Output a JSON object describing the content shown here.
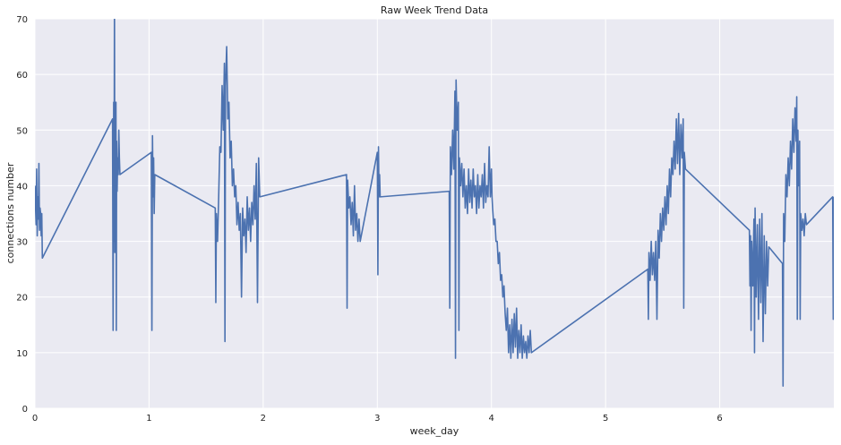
{
  "chart_data": {
    "type": "line",
    "title": "Raw Week Trend Data",
    "xlabel": "week_day",
    "ylabel": "connections number",
    "xlim": [
      0,
      7.0
    ],
    "ylim": [
      0,
      70
    ],
    "x_ticks": [
      "0",
      "1",
      "2",
      "3",
      "4",
      "5",
      "6"
    ],
    "y_ticks": [
      "0",
      "10",
      "20",
      "30",
      "40",
      "50",
      "60",
      "70"
    ],
    "grid": true,
    "legend": "none",
    "colors": {
      "background": "#eaeaf2",
      "grid": "#ffffff",
      "series": "#4c72b0"
    },
    "series": [
      {
        "values": [
          [
            0.0,
            40
          ],
          [
            0.01,
            33
          ],
          [
            0.015,
            43
          ],
          [
            0.02,
            31
          ],
          [
            0.025,
            38
          ],
          [
            0.03,
            34
          ],
          [
            0.035,
            44
          ],
          [
            0.04,
            32
          ],
          [
            0.045,
            36
          ],
          [
            0.05,
            35
          ],
          [
            0.055,
            31
          ],
          [
            0.06,
            35
          ],
          [
            0.065,
            27
          ],
          [
            0.68,
            52
          ],
          [
            0.685,
            14
          ],
          [
            0.69,
            55
          ],
          [
            0.693,
            30
          ],
          [
            0.697,
            75
          ],
          [
            0.7,
            28
          ],
          [
            0.703,
            50
          ],
          [
            0.706,
            36
          ],
          [
            0.71,
            55
          ],
          [
            0.713,
            14
          ],
          [
            0.716,
            48
          ],
          [
            0.72,
            39
          ],
          [
            0.725,
            45
          ],
          [
            0.73,
            42
          ],
          [
            0.735,
            50
          ],
          [
            0.74,
            45
          ],
          [
            0.745,
            42
          ],
          [
            1.02,
            46
          ],
          [
            1.025,
            14
          ],
          [
            1.03,
            49
          ],
          [
            1.035,
            38
          ],
          [
            1.04,
            45
          ],
          [
            1.045,
            35
          ],
          [
            1.05,
            42
          ],
          [
            1.58,
            36
          ],
          [
            1.585,
            19
          ],
          [
            1.59,
            35
          ],
          [
            1.6,
            30
          ],
          [
            1.61,
            38
          ],
          [
            1.62,
            47
          ],
          [
            1.63,
            46
          ],
          [
            1.64,
            58
          ],
          [
            1.65,
            50
          ],
          [
            1.66,
            62
          ],
          [
            1.665,
            12
          ],
          [
            1.67,
            58
          ],
          [
            1.68,
            65
          ],
          [
            1.69,
            52
          ],
          [
            1.7,
            55
          ],
          [
            1.71,
            45
          ],
          [
            1.72,
            48
          ],
          [
            1.73,
            40
          ],
          [
            1.74,
            43
          ],
          [
            1.75,
            38
          ],
          [
            1.76,
            40
          ],
          [
            1.77,
            33
          ],
          [
            1.78,
            37
          ],
          [
            1.79,
            32
          ],
          [
            1.8,
            35
          ],
          [
            1.81,
            20
          ],
          [
            1.82,
            36
          ],
          [
            1.83,
            31
          ],
          [
            1.84,
            34
          ],
          [
            1.85,
            28
          ],
          [
            1.86,
            38
          ],
          [
            1.87,
            32
          ],
          [
            1.88,
            36
          ],
          [
            1.89,
            30
          ],
          [
            1.9,
            37
          ],
          [
            1.91,
            33
          ],
          [
            1.92,
            40
          ],
          [
            1.93,
            34
          ],
          [
            1.94,
            44
          ],
          [
            1.95,
            19
          ],
          [
            1.96,
            45
          ],
          [
            1.97,
            38
          ],
          [
            2.73,
            42
          ],
          [
            2.735,
            18
          ],
          [
            2.74,
            41
          ],
          [
            2.75,
            36
          ],
          [
            2.76,
            38
          ],
          [
            2.77,
            33
          ],
          [
            2.78,
            37
          ],
          [
            2.79,
            31
          ],
          [
            2.8,
            40
          ],
          [
            2.81,
            32
          ],
          [
            2.82,
            35
          ],
          [
            2.83,
            30
          ],
          [
            2.84,
            34
          ],
          [
            2.85,
            30
          ],
          [
            3.0,
            46
          ],
          [
            3.005,
            24
          ],
          [
            3.01,
            47
          ],
          [
            3.015,
            38
          ],
          [
            3.02,
            42
          ],
          [
            3.025,
            38
          ],
          [
            3.63,
            39
          ],
          [
            3.635,
            18
          ],
          [
            3.64,
            47
          ],
          [
            3.65,
            42
          ],
          [
            3.66,
            50
          ],
          [
            3.67,
            43
          ],
          [
            3.68,
            57
          ],
          [
            3.685,
            9
          ],
          [
            3.69,
            59
          ],
          [
            3.7,
            50
          ],
          [
            3.71,
            55
          ],
          [
            3.715,
            14
          ],
          [
            3.72,
            45
          ],
          [
            3.73,
            40
          ],
          [
            3.74,
            44
          ],
          [
            3.75,
            38
          ],
          [
            3.76,
            43
          ],
          [
            3.77,
            36
          ],
          [
            3.78,
            40
          ],
          [
            3.79,
            35
          ],
          [
            3.8,
            43
          ],
          [
            3.81,
            37
          ],
          [
            3.82,
            41
          ],
          [
            3.83,
            36
          ],
          [
            3.84,
            43
          ],
          [
            3.85,
            38
          ],
          [
            3.86,
            40
          ],
          [
            3.87,
            35
          ],
          [
            3.88,
            42
          ],
          [
            3.89,
            36
          ],
          [
            3.9,
            40
          ],
          [
            3.91,
            38
          ],
          [
            3.92,
            42
          ],
          [
            3.93,
            36
          ],
          [
            3.94,
            44
          ],
          [
            3.95,
            37
          ],
          [
            3.96,
            40
          ],
          [
            3.97,
            38
          ],
          [
            3.98,
            47
          ],
          [
            3.99,
            38
          ],
          [
            4.0,
            43
          ],
          [
            4.005,
            38
          ],
          [
            4.01,
            36
          ],
          [
            4.02,
            33
          ],
          [
            4.03,
            34
          ],
          [
            4.04,
            30
          ],
          [
            4.05,
            30
          ],
          [
            4.06,
            26
          ],
          [
            4.07,
            28
          ],
          [
            4.08,
            23
          ],
          [
            4.09,
            24
          ],
          [
            4.1,
            20
          ],
          [
            4.11,
            22
          ],
          [
            4.12,
            17
          ],
          [
            4.13,
            14
          ],
          [
            4.14,
            18
          ],
          [
            4.15,
            10
          ],
          [
            4.16,
            15
          ],
          [
            4.17,
            9
          ],
          [
            4.18,
            16
          ],
          [
            4.19,
            10
          ],
          [
            4.2,
            17
          ],
          [
            4.21,
            11
          ],
          [
            4.22,
            18
          ],
          [
            4.23,
            9
          ],
          [
            4.24,
            14
          ],
          [
            4.25,
            10
          ],
          [
            4.26,
            15
          ],
          [
            4.27,
            9
          ],
          [
            4.28,
            13
          ],
          [
            4.29,
            10
          ],
          [
            4.3,
            12
          ],
          [
            4.31,
            9
          ],
          [
            4.32,
            13
          ],
          [
            4.33,
            10
          ],
          [
            4.34,
            14
          ],
          [
            4.35,
            10
          ],
          [
            5.37,
            25
          ],
          [
            5.375,
            16
          ],
          [
            5.38,
            28
          ],
          [
            5.39,
            23
          ],
          [
            5.4,
            30
          ],
          [
            5.41,
            24
          ],
          [
            5.42,
            28
          ],
          [
            5.43,
            23
          ],
          [
            5.44,
            30
          ],
          [
            5.45,
            16
          ],
          [
            5.46,
            32
          ],
          [
            5.47,
            27
          ],
          [
            5.48,
            35
          ],
          [
            5.49,
            30
          ],
          [
            5.5,
            36
          ],
          [
            5.51,
            32
          ],
          [
            5.52,
            38
          ],
          [
            5.53,
            33
          ],
          [
            5.54,
            40
          ],
          [
            5.55,
            35
          ],
          [
            5.56,
            43
          ],
          [
            5.57,
            38
          ],
          [
            5.58,
            45
          ],
          [
            5.59,
            42
          ],
          [
            5.6,
            48
          ],
          [
            5.61,
            43
          ],
          [
            5.62,
            52
          ],
          [
            5.63,
            44
          ],
          [
            5.64,
            53
          ],
          [
            5.65,
            42
          ],
          [
            5.66,
            51
          ],
          [
            5.67,
            45
          ],
          [
            5.68,
            52
          ],
          [
            5.685,
            18
          ],
          [
            5.69,
            46
          ],
          [
            5.7,
            43
          ],
          [
            6.26,
            32
          ],
          [
            6.265,
            22
          ],
          [
            6.27,
            31
          ],
          [
            6.275,
            14
          ],
          [
            6.28,
            30
          ],
          [
            6.29,
            22
          ],
          [
            6.3,
            34
          ],
          [
            6.305,
            10
          ],
          [
            6.31,
            36
          ],
          [
            6.32,
            20
          ],
          [
            6.33,
            33
          ],
          [
            6.34,
            16
          ],
          [
            6.35,
            34
          ],
          [
            6.36,
            19
          ],
          [
            6.37,
            35
          ],
          [
            6.38,
            12
          ],
          [
            6.39,
            31
          ],
          [
            6.4,
            17
          ],
          [
            6.41,
            30
          ],
          [
            6.42,
            22
          ],
          [
            6.43,
            29
          ],
          [
            6.55,
            26
          ],
          [
            6.555,
            4
          ],
          [
            6.56,
            35
          ],
          [
            6.57,
            30
          ],
          [
            6.58,
            42
          ],
          [
            6.59,
            38
          ],
          [
            6.6,
            45
          ],
          [
            6.61,
            40
          ],
          [
            6.62,
            48
          ],
          [
            6.63,
            43
          ],
          [
            6.64,
            52
          ],
          [
            6.65,
            46
          ],
          [
            6.66,
            54
          ],
          [
            6.67,
            48
          ],
          [
            6.675,
            56
          ],
          [
            6.68,
            16
          ],
          [
            6.685,
            50
          ],
          [
            6.69,
            40
          ],
          [
            6.7,
            48
          ],
          [
            6.705,
            16
          ],
          [
            6.71,
            35
          ],
          [
            6.72,
            32
          ],
          [
            6.73,
            34
          ],
          [
            6.74,
            31
          ],
          [
            6.75,
            35
          ],
          [
            6.76,
            33
          ],
          [
            6.99,
            38
          ],
          [
            6.995,
            16
          ],
          [
            7.0,
            38
          ]
        ]
      }
    ]
  }
}
